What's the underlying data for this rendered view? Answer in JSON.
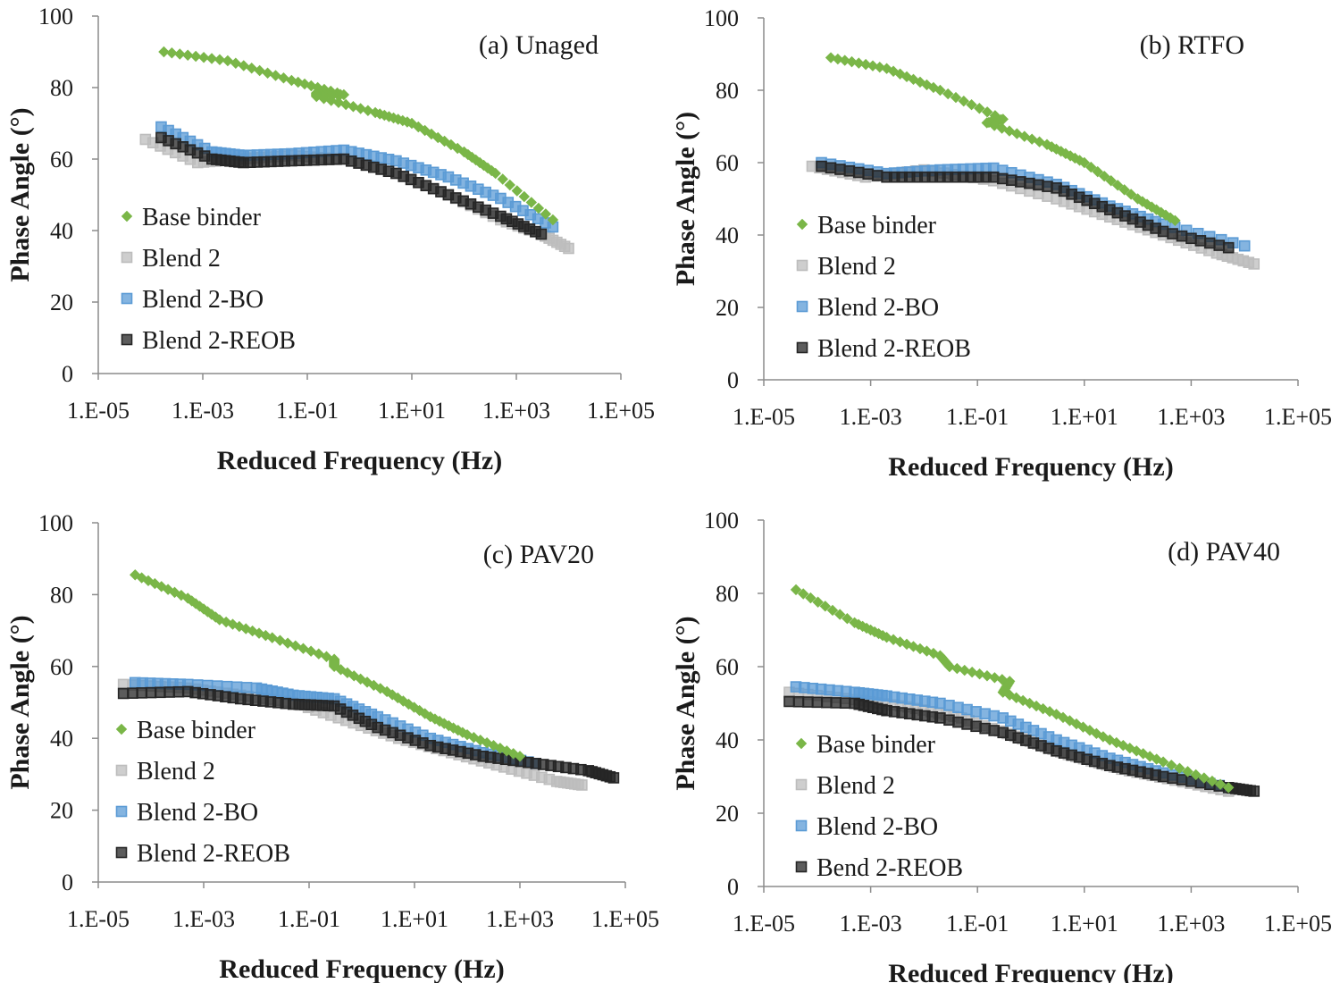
{
  "colors": {
    "base_binder": "#7ab648",
    "blend2": "#bdbdbd",
    "blend2_bo": "#5b9bd5",
    "blend2_reob": "#262626",
    "axis": "#8c8c8c"
  },
  "chart_data": [
    {
      "type": "scatter",
      "panel_label": "(a) Unaged",
      "xlabel": "Reduced Frequency (Hz)",
      "ylabel": "Phase Angle (°)",
      "xscale": "log",
      "xlim": [
        1e-05,
        100000
      ],
      "ylim": [
        0,
        100
      ],
      "x_ticks": [
        "1.E-05",
        "1.E-03",
        "1.E-01",
        "1.E+01",
        "1.E+03",
        "1.E+05"
      ],
      "y_ticks": [
        "0",
        "20",
        "40",
        "60",
        "80",
        "100"
      ],
      "legend_position": "left",
      "series": [
        {
          "name": "Base binder",
          "color_key": "base_binder",
          "marker": "diamond",
          "points": [
            [
              0.00018,
              90
            ],
            [
              0.003,
              87.5
            ],
            [
              0.05,
              82
            ],
            [
              0.5,
              78
            ],
            [
              0.15,
              78.5
            ],
            [
              0.15,
              77.5
            ],
            [
              2,
              73
            ],
            [
              10,
              70
            ],
            [
              100,
              62
            ],
            [
              400,
              56
            ],
            [
              5000,
              43
            ]
          ]
        },
        {
          "name": "Blend 2",
          "color_key": "blend2",
          "marker": "square",
          "points": [
            [
              8e-05,
              65.5
            ],
            [
              0.0008,
              59
            ],
            [
              0.005,
              60
            ],
            [
              0.05,
              61
            ],
            [
              0.5,
              60
            ],
            [
              5,
              56
            ],
            [
              50,
              50
            ],
            [
              500,
              43
            ],
            [
              3000,
              39
            ],
            [
              10000,
              35
            ]
          ]
        },
        {
          "name": "Blend 2-BO",
          "color_key": "blend2_bo",
          "marker": "square",
          "points": [
            [
              0.00016,
              69
            ],
            [
              0.0015,
              62
            ],
            [
              0.006,
              61
            ],
            [
              0.05,
              61.5
            ],
            [
              0.5,
              62.5
            ],
            [
              5,
              59.5
            ],
            [
              50,
              55
            ],
            [
              500,
              49
            ],
            [
              5000,
              41
            ]
          ]
        },
        {
          "name": "Blend 2-REOB",
          "color_key": "blend2_reob",
          "marker": "square",
          "points": [
            [
              0.00016,
              66
            ],
            [
              0.0015,
              60
            ],
            [
              0.006,
              59
            ],
            [
              0.05,
              59.5
            ],
            [
              0.5,
              60
            ],
            [
              5,
              56
            ],
            [
              50,
              50
            ],
            [
              500,
              44
            ],
            [
              3000,
              39
            ]
          ]
        }
      ]
    },
    {
      "type": "scatter",
      "panel_label": "(b) RTFO",
      "xlabel": "Reduced Frequency (Hz)",
      "ylabel": "Phase Angle (°)",
      "xscale": "log",
      "xlim": [
        1e-05,
        100000
      ],
      "ylim": [
        0,
        100
      ],
      "x_ticks": [
        "1.E-05",
        "1.E-03",
        "1.E-01",
        "1.E+01",
        "1.E+03",
        "1.E+05"
      ],
      "y_ticks": [
        "0",
        "20",
        "40",
        "60",
        "80",
        "100"
      ],
      "legend_position": "left",
      "series": [
        {
          "name": "Base binder",
          "color_key": "base_binder",
          "marker": "diamond",
          "points": [
            [
              0.00018,
              89
            ],
            [
              0.002,
              86
            ],
            [
              0.02,
              80
            ],
            [
              0.3,
              72
            ],
            [
              0.15,
              71
            ],
            [
              2,
              65
            ],
            [
              10,
              60
            ],
            [
              100,
              50
            ],
            [
              500,
              44
            ]
          ]
        },
        {
          "name": "Blend 2",
          "color_key": "blend2",
          "marker": "square",
          "points": [
            [
              8e-05,
              59
            ],
            [
              0.0008,
              56
            ],
            [
              0.01,
              58
            ],
            [
              0.2,
              55
            ],
            [
              3,
              50
            ],
            [
              30,
              45
            ],
            [
              300,
              40
            ],
            [
              3000,
              35
            ],
            [
              15000,
              32
            ]
          ]
        },
        {
          "name": "Blend 2-BO",
          "color_key": "blend2_bo",
          "marker": "square",
          "points": [
            [
              0.00012,
              60
            ],
            [
              0.002,
              57
            ],
            [
              0.02,
              58
            ],
            [
              0.2,
              58.5
            ],
            [
              3,
              54
            ],
            [
              30,
              48
            ],
            [
              300,
              43
            ],
            [
              10000,
              37
            ]
          ]
        },
        {
          "name": "Blend 2-REOB",
          "color_key": "blend2_reob",
          "marker": "square",
          "points": [
            [
              0.00012,
              59
            ],
            [
              0.002,
              56
            ],
            [
              0.02,
              56
            ],
            [
              0.2,
              56
            ],
            [
              3,
              53
            ],
            [
              30,
              47
            ],
            [
              300,
              41
            ],
            [
              5000,
              36.5
            ]
          ]
        }
      ]
    },
    {
      "type": "scatter",
      "panel_label": "(c) PAV20",
      "xlabel": "Reduced Frequency (Hz)",
      "ylabel": "Phase Angle (°)",
      "xscale": "log",
      "xlim": [
        1e-05,
        100000
      ],
      "ylim": [
        0,
        100
      ],
      "x_ticks": [
        "1.E-05",
        "1.E-03",
        "1.E-01",
        "1.E+01",
        "1.E+03",
        "1.E+05"
      ],
      "y_ticks": [
        "0",
        "20",
        "40",
        "60",
        "80",
        "100"
      ],
      "legend_position": "left",
      "series": [
        {
          "name": "Base binder",
          "color_key": "base_binder",
          "marker": "diamond",
          "points": [
            [
              5e-05,
              85.5
            ],
            [
              0.0005,
              79
            ],
            [
              0.002,
              73
            ],
            [
              0.02,
              68
            ],
            [
              0.3,
              62
            ],
            [
              0.3,
              60
            ],
            [
              3,
              53
            ],
            [
              20,
              46
            ],
            [
              100,
              41
            ],
            [
              1000,
              35
            ]
          ]
        },
        {
          "name": "Blend 2",
          "color_key": "blend2",
          "marker": "square",
          "points": [
            [
              3e-05,
              55
            ],
            [
              0.0005,
              54
            ],
            [
              0.005,
              52
            ],
            [
              0.05,
              50
            ],
            [
              0.5,
              45
            ],
            [
              5,
              40
            ],
            [
              50,
              36
            ],
            [
              500,
              32
            ],
            [
              5000,
              28
            ],
            [
              15000,
              27
            ]
          ]
        },
        {
          "name": "Blend 2-BO",
          "color_key": "blend2_bo",
          "marker": "square",
          "points": [
            [
              5e-05,
              55.5
            ],
            [
              0.0005,
              55
            ],
            [
              0.01,
              54
            ],
            [
              0.05,
              52
            ],
            [
              0.3,
              51
            ],
            [
              2,
              46
            ],
            [
              20,
              40
            ],
            [
              200,
              36
            ],
            [
              2000,
              33
            ]
          ]
        },
        {
          "name": "Blend 2-REOB",
          "color_key": "blend2_reob",
          "marker": "square",
          "points": [
            [
              3e-05,
              52.5
            ],
            [
              0.0005,
              53
            ],
            [
              0.005,
              51
            ],
            [
              0.05,
              49.5
            ],
            [
              0.3,
              49
            ],
            [
              2,
              43
            ],
            [
              20,
              38
            ],
            [
              200,
              35
            ],
            [
              2000,
              33
            ],
            [
              20000,
              31
            ],
            [
              60000,
              29
            ]
          ]
        }
      ]
    },
    {
      "type": "scatter",
      "panel_label": "(d) PAV40",
      "xlabel": "Reduced Frequency (Hz)",
      "ylabel": "Phase Angle (°)",
      "xscale": "log",
      "xlim": [
        1e-05,
        100000
      ],
      "ylim": [
        0,
        100
      ],
      "x_ticks": [
        "1.E-05",
        "1.E-03",
        "1.E-01",
        "1.E+01",
        "1.E+03",
        "1.E+05"
      ],
      "y_ticks": [
        "0",
        "20",
        "40",
        "60",
        "80",
        "100"
      ],
      "legend_position": "left",
      "series": [
        {
          "name": "Base binder",
          "color_key": "base_binder",
          "marker": "diamond",
          "points": [
            [
              4e-05,
              81
            ],
            [
              0.0005,
              72
            ],
            [
              0.002,
              68
            ],
            [
              0.02,
              63
            ],
            [
              0.03,
              60
            ],
            [
              0.4,
              56
            ],
            [
              0.3,
              53
            ],
            [
              3,
              47
            ],
            [
              30,
              40
            ],
            [
              300,
              34
            ],
            [
              5000,
              27
            ]
          ]
        },
        {
          "name": "Blend 2",
          "color_key": "blend2",
          "marker": "square",
          "points": [
            [
              3e-05,
              53
            ],
            [
              0.0005,
              51
            ],
            [
              0.005,
              49
            ],
            [
              0.05,
              46
            ],
            [
              0.5,
              41
            ],
            [
              5,
              36
            ],
            [
              50,
              32
            ],
            [
              500,
              29
            ],
            [
              5000,
              26
            ]
          ]
        },
        {
          "name": "Blend 2-BO",
          "color_key": "blend2_bo",
          "marker": "square",
          "points": [
            [
              4e-05,
              54.5
            ],
            [
              0.0005,
              53
            ],
            [
              0.002,
              52
            ],
            [
              0.02,
              50
            ],
            [
              0.3,
              46
            ],
            [
              3,
              40
            ],
            [
              30,
              35
            ],
            [
              300,
              31
            ],
            [
              5000,
              27
            ]
          ]
        },
        {
          "name": "Bend 2-REOB",
          "color_key": "blend2_reob",
          "marker": "square",
          "points": [
            [
              3e-05,
              50.5
            ],
            [
              0.0005,
              50
            ],
            [
              0.002,
              48
            ],
            [
              0.02,
              46
            ],
            [
              0.3,
              42
            ],
            [
              3,
              37
            ],
            [
              30,
              33
            ],
            [
              300,
              30
            ],
            [
              5000,
              27
            ],
            [
              15000,
              26
            ]
          ]
        }
      ]
    }
  ]
}
